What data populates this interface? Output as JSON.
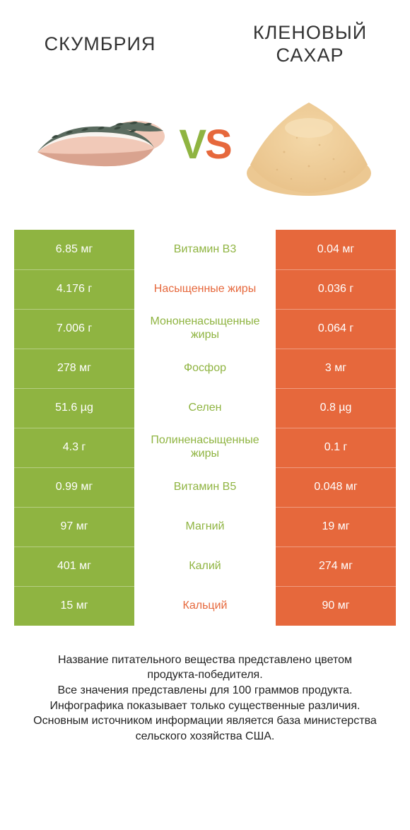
{
  "titles": {
    "left": "СКУМБРИЯ",
    "right": "КЛЕНОВЫЙ САХАР"
  },
  "colors": {
    "green": "#8fb441",
    "orange": "#e6683c",
    "white": "#ffffff",
    "sugar_light": "#f4d8a8",
    "sugar_dark": "#e8c188",
    "fish_skin_top": "#5a6b5f",
    "fish_skin_mark": "#3a4a3f",
    "fish_flesh": "#f1c9b8",
    "fish_flesh_dark": "#d9a38f",
    "fish_belly": "#f8f4ef"
  },
  "rows": [
    {
      "left": "6.85 мг",
      "name": "Витамин B3",
      "right": "0.04 мг",
      "winner": "left"
    },
    {
      "left": "4.176 г",
      "name": "Насыщенные жиры",
      "right": "0.036 г",
      "winner": "right"
    },
    {
      "left": "7.006 г",
      "name": "Мононенасыщенные жиры",
      "right": "0.064 г",
      "winner": "left"
    },
    {
      "left": "278 мг",
      "name": "Фосфор",
      "right": "3 мг",
      "winner": "left"
    },
    {
      "left": "51.6 µg",
      "name": "Селен",
      "right": "0.8 µg",
      "winner": "left"
    },
    {
      "left": "4.3 г",
      "name": "Полиненасыщенные жиры",
      "right": "0.1 г",
      "winner": "left"
    },
    {
      "left": "0.99 мг",
      "name": "Витамин B5",
      "right": "0.048 мг",
      "winner": "left"
    },
    {
      "left": "97 мг",
      "name": "Магний",
      "right": "19 мг",
      "winner": "left"
    },
    {
      "left": "401 мг",
      "name": "Калий",
      "right": "274 мг",
      "winner": "left"
    },
    {
      "left": "15 мг",
      "name": "Кальций",
      "right": "90 мг",
      "winner": "right"
    }
  ],
  "footer": [
    "Название питательного вещества представлено цветом продукта-победителя.",
    "Все значения представлены для 100 граммов продукта.",
    "Инфографика показывает только существенные различия.",
    "Основным источником информации является база министерства сельского хозяйства США."
  ]
}
